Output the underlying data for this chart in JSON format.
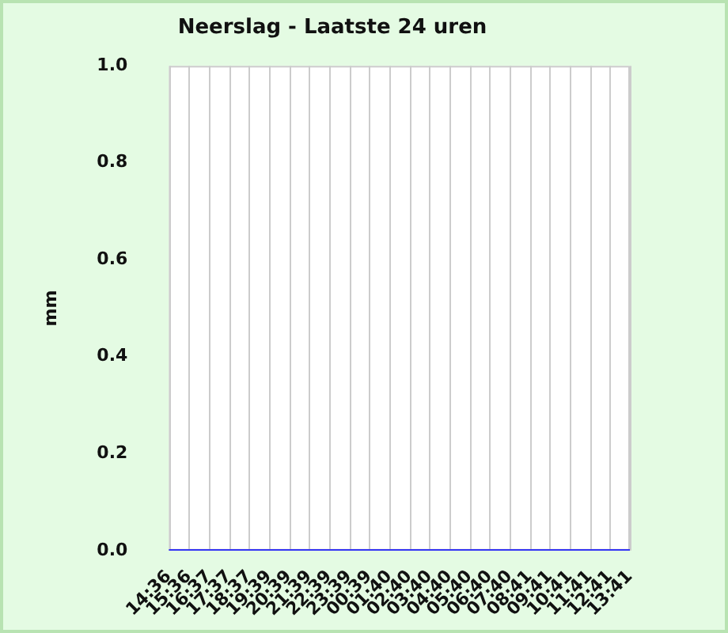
{
  "chart_data": {
    "type": "line",
    "title": "Neerslag - Laatste 24 uren",
    "ylabel": "mm",
    "categories": [
      "14:36",
      "15:36",
      "16:37",
      "17:37",
      "18:37",
      "19:39",
      "20:39",
      "21:39",
      "22:39",
      "23:39",
      "00:39",
      "01:40",
      "02:40",
      "03:40",
      "04:40",
      "05:40",
      "06:40",
      "07:40",
      "08:41",
      "09:41",
      "10:41",
      "11:41",
      "12:41",
      "13:41"
    ],
    "series": [
      {
        "color": "#0000ff",
        "values": [
          0,
          0,
          0,
          0,
          0,
          0,
          0,
          0,
          0,
          0,
          0,
          0,
          0,
          0,
          0,
          0,
          0,
          0,
          0,
          0,
          0,
          0,
          0,
          0
        ]
      }
    ],
    "ylim": [
      0,
      1
    ],
    "yticks": [
      {
        "value": 0,
        "label": "0.0"
      },
      {
        "value": 0.2,
        "label": "0.2"
      },
      {
        "value": 0.4,
        "label": "0.4"
      },
      {
        "value": 0.6,
        "label": "0.6"
      },
      {
        "value": 0.8,
        "label": "0.8"
      },
      {
        "value": 1,
        "label": "1.0"
      }
    ],
    "grid": "x",
    "legend": false,
    "marker": "none",
    "line_style": "solid"
  }
}
